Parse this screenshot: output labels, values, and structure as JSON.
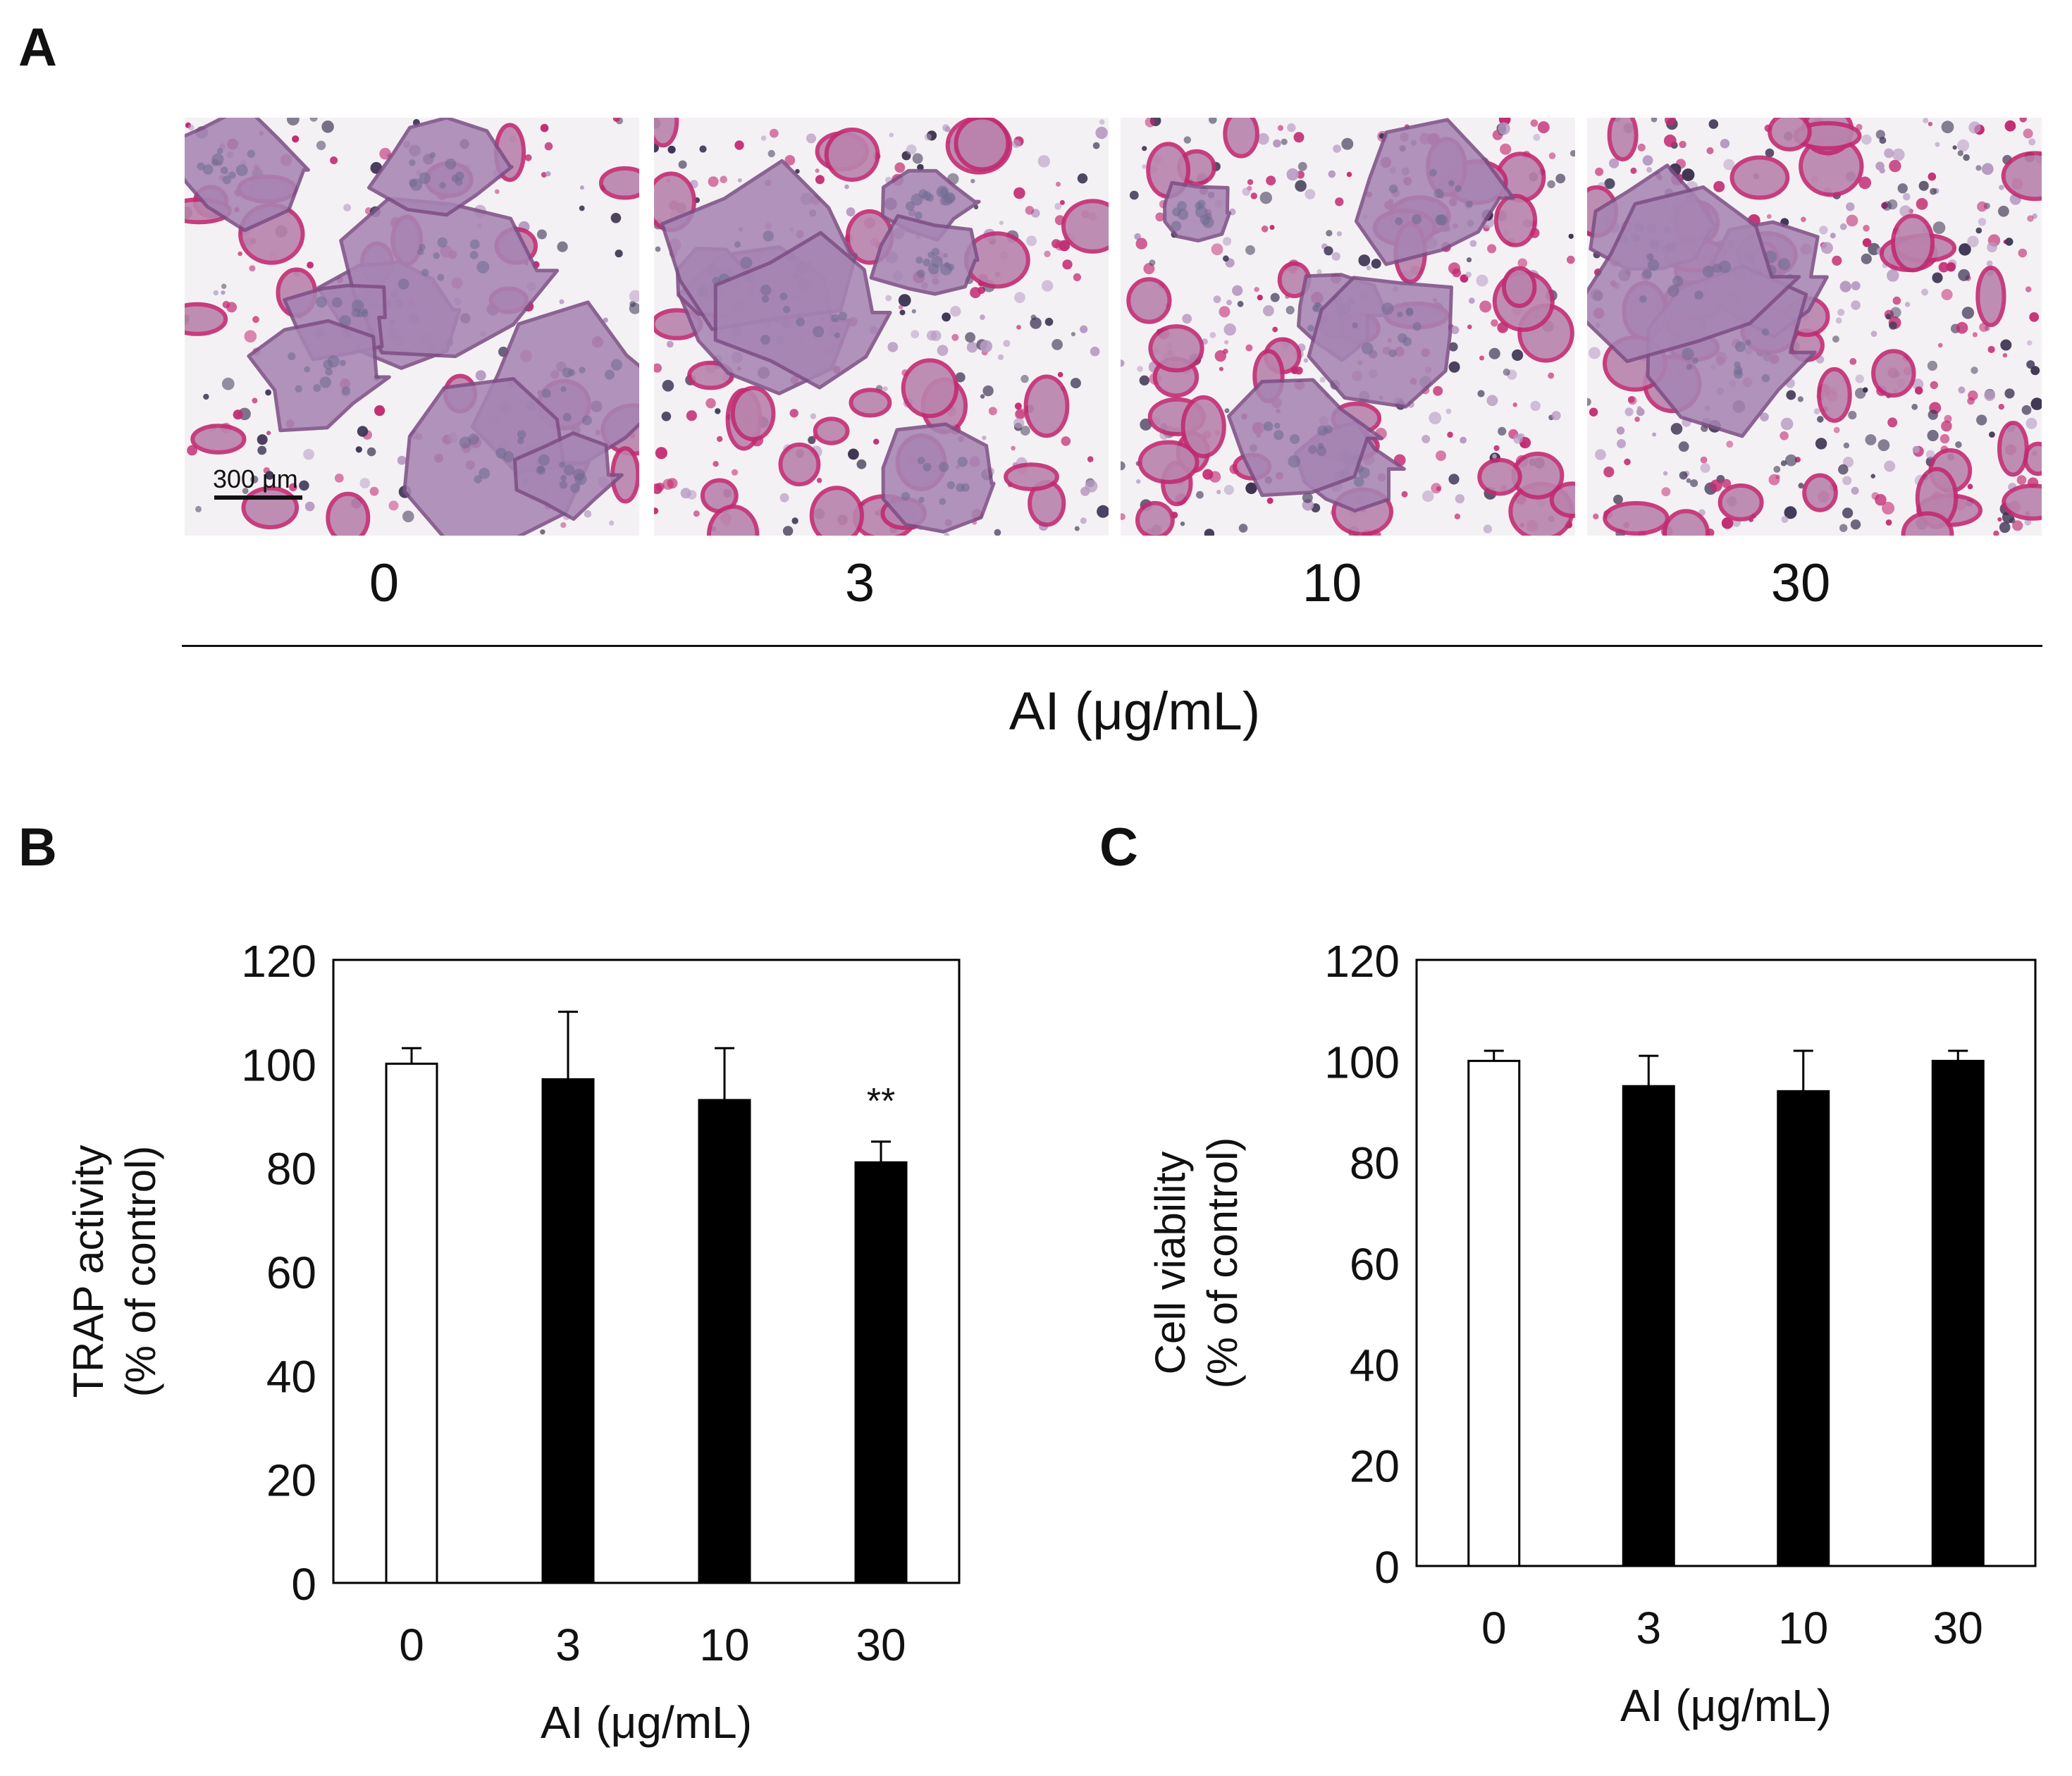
{
  "panels": {
    "a_letter": "A",
    "b_letter": "B",
    "c_letter": "C"
  },
  "panel_a": {
    "conditions": [
      "0",
      "3",
      "10",
      "30"
    ],
    "axis_label": "AI (μg/mL)",
    "scale_bar": "300 μm",
    "stain_colors": {
      "background": "#f4f1f4",
      "osteoclast": "#a785b3",
      "nucleus": "#3e3553",
      "trap_stain": "#c22b71"
    }
  },
  "chart_data": [
    {
      "type": "bar",
      "panel": "B",
      "categories": [
        "0",
        "3",
        "10",
        "30"
      ],
      "values": [
        100,
        97,
        93,
        81
      ],
      "errors": [
        3,
        13,
        10,
        4
      ],
      "bar_colors": [
        "#ffffff",
        "#000000",
        "#000000",
        "#000000"
      ],
      "annotations": [
        "",
        "",
        "",
        "**"
      ],
      "ylabel_line1": "TRAP activity",
      "ylabel_line2": "(% of control)",
      "xlabel": "AI (μg/mL)",
      "ylim": [
        0,
        120
      ],
      "yticks": [
        "0",
        "20",
        "40",
        "60",
        "80",
        "100",
        "120"
      ],
      "grid": false
    },
    {
      "type": "bar",
      "panel": "C",
      "categories": [
        "0",
        "3",
        "10",
        "30"
      ],
      "values": [
        100,
        95,
        94,
        100
      ],
      "errors": [
        2,
        6,
        8,
        2
      ],
      "bar_colors": [
        "#ffffff",
        "#000000",
        "#000000",
        "#000000"
      ],
      "annotations": [
        "",
        "",
        "",
        ""
      ],
      "ylabel_line1": "Cell viability",
      "ylabel_line2": "(% of control)",
      "xlabel": "AI (μg/mL)",
      "ylim": [
        0,
        120
      ],
      "yticks": [
        "0",
        "20",
        "40",
        "60",
        "80",
        "100",
        "120"
      ],
      "grid": false
    }
  ]
}
